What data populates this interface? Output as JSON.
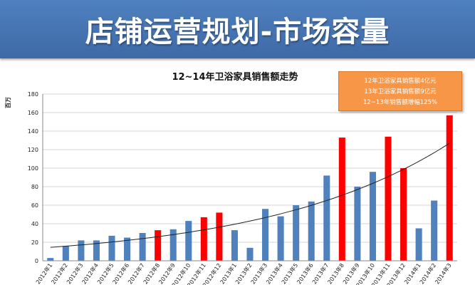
{
  "header": {
    "title": "店铺运营规划-市场容量"
  },
  "callout": {
    "lines": [
      "12年卫浴家具销售额4亿元",
      "13年卫浴家具销售额9亿元",
      "12~13年销售额增幅125%"
    ]
  },
  "colors": {
    "banner": "#4a7bbd",
    "bar_normal": "#4f81bd",
    "bar_highlight": "#ff0000",
    "callout": "#f79646",
    "trend": "#222222"
  },
  "chart_data": {
    "type": "bar",
    "title": "12~14年卫浴家具销售额走势",
    "ylabel": "百万",
    "xlabel": "",
    "ylim": [
      0,
      180
    ],
    "yticks": [
      0,
      20,
      40,
      60,
      80,
      100,
      120,
      140,
      160,
      180
    ],
    "grid": true,
    "trendline": "exponential",
    "categories": [
      "2012年1",
      "2012年2",
      "2012年3",
      "2012年4",
      "2012年5",
      "2012年6",
      "2012年7",
      "2012年8",
      "2012年9",
      "2012年10",
      "2012年11",
      "2012年12",
      "2013年1",
      "2013年2",
      "2013年3",
      "2013年4",
      "2013年5",
      "2013年6",
      "2013年7",
      "2013年8",
      "2013年9",
      "2013年10",
      "2013年11",
      "2013年12",
      "2014年1",
      "2014年2",
      "2014年3"
    ],
    "values": [
      3,
      16,
      22,
      22,
      27,
      25,
      30,
      33,
      34,
      43,
      47,
      52,
      33,
      14,
      56,
      48,
      60,
      64,
      92,
      133,
      80,
      96,
      134,
      100,
      35,
      65,
      157
    ],
    "highlight": [
      false,
      false,
      false,
      false,
      false,
      false,
      false,
      true,
      false,
      false,
      true,
      true,
      false,
      false,
      false,
      false,
      false,
      false,
      false,
      true,
      false,
      false,
      true,
      true,
      false,
      false,
      true
    ]
  }
}
